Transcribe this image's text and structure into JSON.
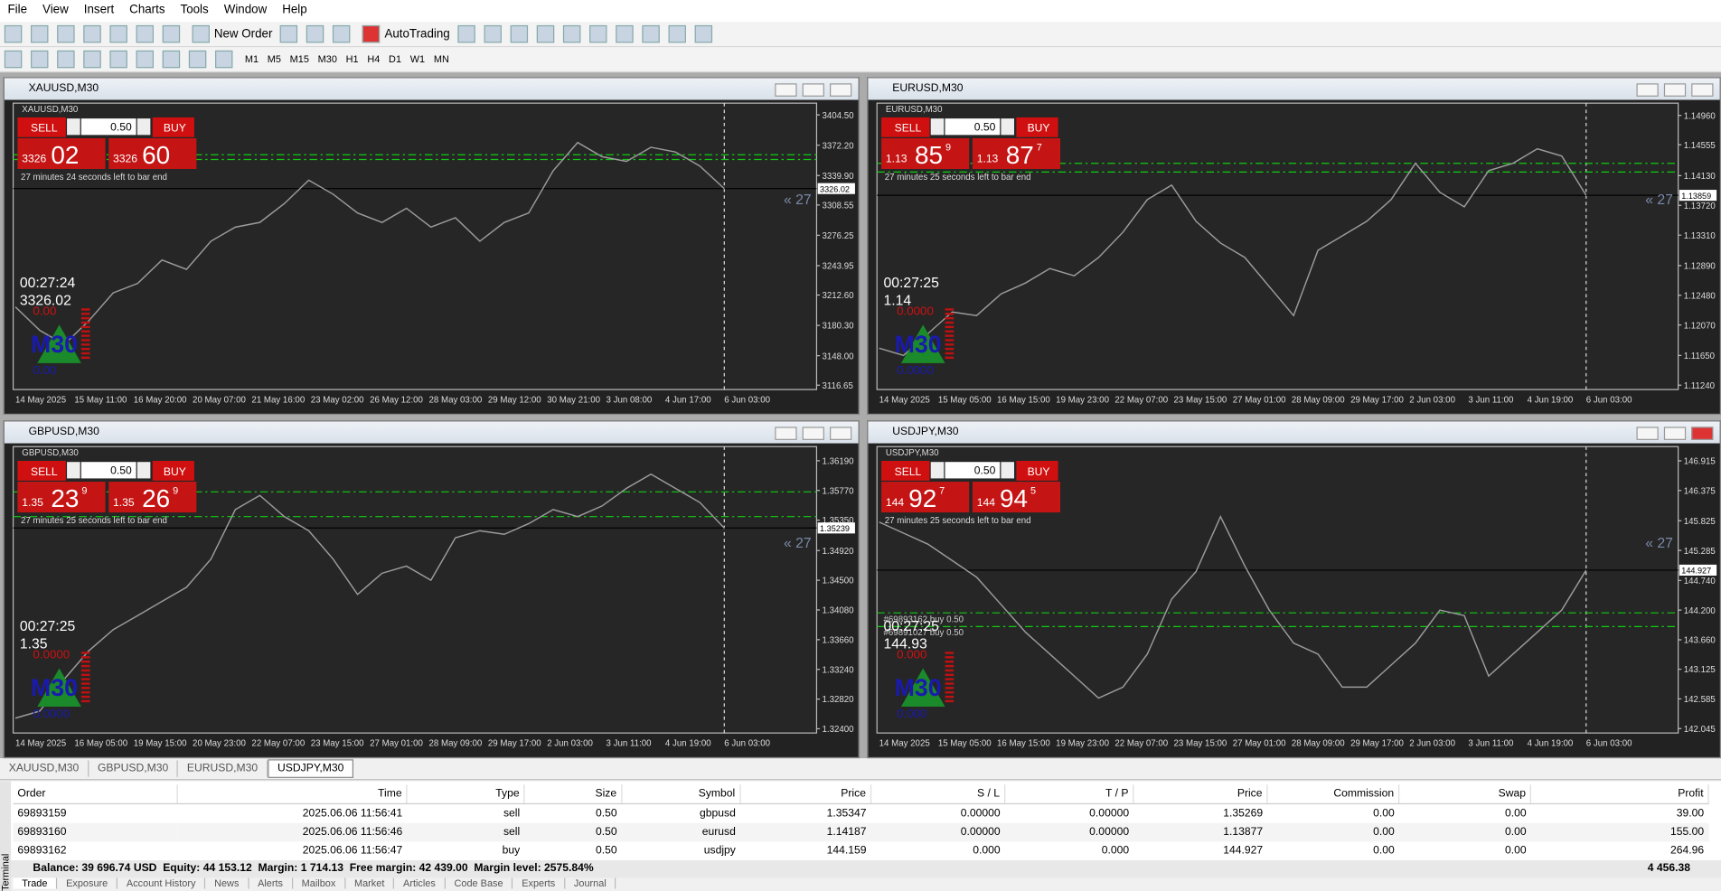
{
  "menu": [
    "File",
    "View",
    "Insert",
    "Charts",
    "Tools",
    "Window",
    "Help"
  ],
  "toolbar": {
    "new_order": "New Order",
    "autotrading": "AutoTrading",
    "timeframes": [
      "M1",
      "M5",
      "M15",
      "M30",
      "H1",
      "H4",
      "D1",
      "W1",
      "MN"
    ]
  },
  "charts": [
    {
      "title": "XAUUSD,M30",
      "symbol_label": "XAUUSD,M30",
      "sell": "SELL",
      "buy": "BUY",
      "lot": "0.50",
      "bid": {
        "prefix": "3326",
        "main": "02"
      },
      "ask": {
        "prefix": "3326",
        "main": "60"
      },
      "timer": "27 minutes 24 seconds left to bar end",
      "clock": "00:27:24",
      "price_text": "3326.02",
      "red_text": "0.00",
      "blue_text": "0.00",
      "tf": "M30",
      "arrow_text": "« 27",
      "ylim": [
        3112,
        3417
      ],
      "yticks": [
        {
          "value": 3404.5,
          "label": "3404.50"
        },
        {
          "value": 3372.2,
          "label": "3372.20"
        },
        {
          "value": 3339.9,
          "label": "3339.90"
        },
        3308.55,
        3276.25,
        3243.95,
        {
          "value": 3212.6,
          "label": "3212.60"
        },
        {
          "value": 3180.3,
          "label": "3180.30"
        },
        {
          "value": 3148,
          "label": "3148.00"
        },
        3116.65
      ],
      "current": 3326.02,
      "levels": [
        3362,
        3357
      ],
      "xlabels": [
        "14 May 2025",
        "15 May 11:00",
        "16 May 20:00",
        "20 May 07:00",
        "21 May 16:00",
        "23 May 02:00",
        "26 May 12:00",
        "28 May 03:00",
        "29 May 12:00",
        "30 May 21:00",
        "3 Jun 08:00",
        "4 Jun 17:00",
        "6 Jun 03:00"
      ],
      "prices": [
        3200,
        3175,
        3160,
        3185,
        3215,
        3225,
        3250,
        3240,
        3270,
        3285,
        3290,
        3310,
        3335,
        3320,
        3300,
        3290,
        3305,
        3285,
        3295,
        3270,
        3290,
        3300,
        3345,
        3375,
        3360,
        3355,
        3370,
        3365,
        3350,
        3326.02
      ]
    },
    {
      "title": "EURUSD,M30",
      "symbol_label": "EURUSD,M30",
      "sell": "SELL",
      "buy": "BUY",
      "lot": "0.50",
      "bid": {
        "prefix": "1.13",
        "main": "85",
        "sup": "9"
      },
      "ask": {
        "prefix": "1.13",
        "main": "87",
        "sup": "7"
      },
      "timer": "27 minutes 25 seconds left to bar end",
      "clock": "00:27:25",
      "price_text": "1.14",
      "red_text": "0.0000",
      "blue_text": "0.0000",
      "tf": "M30",
      "arrow_text": "« 27",
      "ylim": [
        1.1118,
        1.1513
      ],
      "yticks": [
        {
          "value": 1.1496,
          "label": "1.14960"
        },
        1.14555,
        {
          "value": 1.1413,
          "label": "1.14130"
        },
        {
          "value": 1.1372,
          "label": "1.13720"
        },
        {
          "value": 1.1331,
          "label": "1.13310"
        },
        {
          "value": 1.1289,
          "label": "1.12890"
        },
        {
          "value": 1.1248,
          "label": "1.12480"
        },
        {
          "value": 1.1207,
          "label": "1.12070"
        },
        {
          "value": 1.1165,
          "label": "1.11650"
        },
        {
          "value": 1.1124,
          "label": "1.11240"
        }
      ],
      "current": 1.13859,
      "levels": [
        1.143,
        1.1418
      ],
      "xlabels": [
        "14 May 2025",
        "15 May 05:00",
        "16 May 15:00",
        "19 May 23:00",
        "22 May 07:00",
        "23 May 15:00",
        "27 May 01:00",
        "28 May 09:00",
        "29 May 17:00",
        "2 Jun 03:00",
        "3 Jun 11:00",
        "4 Jun 19:00",
        "6 Jun 03:00"
      ],
      "prices": [
        1.1175,
        1.1165,
        1.1195,
        1.1225,
        1.122,
        1.125,
        1.1265,
        1.1285,
        1.1275,
        1.13,
        1.1335,
        1.138,
        1.14,
        1.135,
        1.132,
        1.13,
        1.126,
        1.122,
        1.131,
        1.133,
        1.135,
        1.138,
        1.143,
        1.139,
        1.137,
        1.142,
        1.143,
        1.145,
        1.144,
        1.13859
      ]
    },
    {
      "title": "GBPUSD,M30",
      "symbol_label": "GBPUSD,M30",
      "sell": "SELL",
      "buy": "BUY",
      "lot": "0.50",
      "bid": {
        "prefix": "1.35",
        "main": "23",
        "sup": "9"
      },
      "ask": {
        "prefix": "1.35",
        "main": "26",
        "sup": "9"
      },
      "timer": "27 minutes 25 seconds left to bar end",
      "clock": "00:27:25",
      "price_text": "1.35",
      "red_text": "0.0000",
      "blue_text": "0.0000",
      "tf": "M30",
      "arrow_text": "« 27",
      "ylim": [
        1.3234,
        1.3639
      ],
      "yticks": [
        {
          "value": 1.3619,
          "label": "1.36190"
        },
        {
          "value": 1.3577,
          "label": "1.35770"
        },
        {
          "value": 1.3535,
          "label": "1.35350"
        },
        {
          "value": 1.3492,
          "label": "1.34920"
        },
        {
          "value": 1.345,
          "label": "1.34500"
        },
        {
          "value": 1.3408,
          "label": "1.34080"
        },
        {
          "value": 1.3366,
          "label": "1.33660"
        },
        {
          "value": 1.3324,
          "label": "1.33240"
        },
        {
          "value": 1.3282,
          "label": "1.32820"
        },
        {
          "value": 1.324,
          "label": "1.32400"
        }
      ],
      "current": 1.35239,
      "levels": [
        1.3575,
        1.354
      ],
      "xlabels": [
        "14 May 2025",
        "16 May 05:00",
        "19 May 15:00",
        "20 May 23:00",
        "22 May 07:00",
        "23 May 15:00",
        "27 May 01:00",
        "28 May 09:00",
        "29 May 17:00",
        "2 Jun 03:00",
        "3 Jun 11:00",
        "4 Jun 19:00",
        "6 Jun 03:00"
      ],
      "prices": [
        1.3255,
        1.3265,
        1.331,
        1.335,
        1.338,
        1.34,
        1.342,
        1.344,
        1.348,
        1.355,
        1.357,
        1.354,
        1.352,
        1.348,
        1.343,
        1.346,
        1.347,
        1.345,
        1.351,
        1.352,
        1.3515,
        1.353,
        1.355,
        1.354,
        1.3555,
        1.358,
        1.36,
        1.358,
        1.356,
        1.35239
      ]
    },
    {
      "title": "USDJPY,M30",
      "symbol_label": "USDJPY,M30",
      "sell": "SELL",
      "buy": "BUY",
      "lot": "0.50",
      "bid": {
        "prefix": "144",
        "main": "92",
        "sup": "7"
      },
      "ask": {
        "prefix": "144",
        "main": "94",
        "sup": "5"
      },
      "timer": "27 minutes 25 seconds left to bar end",
      "clock": "00:27:25",
      "price_text": "144.93",
      "red_text": "0.000",
      "blue_text": "0.000",
      "tf": "M30",
      "arrow_text": "« 27",
      "order_labels": [
        "#69893162 buy 0.50",
        "#69891027 buy 0.50"
      ],
      "ylim": [
        141.965,
        147.174
      ],
      "yticks": [
        146.915,
        146.375,
        145.825,
        145.285,
        {
          "value": 144.74,
          "label": "144.740"
        },
        {
          "value": 144.2,
          "label": "144.200"
        },
        {
          "value": 143.66,
          "label": "143.660"
        },
        143.125,
        142.585,
        142.045
      ],
      "current": 144.927,
      "levels": [
        144.15,
        143.9
      ],
      "xlabels": [
        "14 May 2025",
        "15 May 05:00",
        "16 May 15:00",
        "19 May 23:00",
        "22 May 07:00",
        "23 May 15:00",
        "27 May 01:00",
        "28 May 09:00",
        "29 May 17:00",
        "2 Jun 03:00",
        "3 Jun 11:00",
        "4 Jun 19:00",
        "6 Jun 03:00"
      ],
      "prices": [
        145.8,
        145.6,
        145.4,
        145.1,
        144.8,
        144.3,
        143.8,
        143.4,
        143,
        142.6,
        142.8,
        143.4,
        144.4,
        144.9,
        145.9,
        145,
        144.2,
        143.6,
        143.4,
        142.8,
        142.8,
        143.2,
        143.6,
        144.2,
        144.1,
        143,
        143.4,
        143.8,
        144.2,
        144.927
      ]
    }
  ],
  "chart_tabs": [
    "XAUUSD,M30",
    "GBPUSD,M30",
    "EURUSD,M30",
    "USDJPY,M30"
  ],
  "trade": {
    "headers": [
      "Order",
      "Time",
      "Type",
      "Size",
      "Symbol",
      "Price",
      "S / L",
      "T / P",
      "Price",
      "Commission",
      "Swap",
      "Profit"
    ],
    "rows": [
      [
        "69893159",
        "2025.06.06 11:56:41",
        "sell",
        "0.50",
        "gbpusd",
        "1.35347",
        "0.00000",
        "0.00000",
        "1.35269",
        "0.00",
        "0.00",
        "39.00"
      ],
      [
        "69893160",
        "2025.06.06 11:56:46",
        "sell",
        "0.50",
        "eurusd",
        "1.14187",
        "0.00000",
        "0.00000",
        "1.13877",
        "0.00",
        "0.00",
        "155.00"
      ],
      [
        "69893162",
        "2025.06.06 11:56:47",
        "buy",
        "0.50",
        "usdjpy",
        "144.159",
        "0.000",
        "0.000",
        "144.927",
        "0.00",
        "0.00",
        "264.96"
      ]
    ],
    "balance": "Balance: 39 696.74 USD  Equity: 44 153.12  Margin: 1 714.13  Free margin: 42 439.00  Margin level: 2575.84%",
    "total": "4 456.38"
  },
  "bottom_tabs": [
    "Trade",
    "Exposure",
    "Account History",
    "News",
    "Alerts",
    "Mailbox",
    "Market",
    "Articles",
    "Code Base",
    "Experts",
    "Journal"
  ],
  "side_label": "Terminal"
}
